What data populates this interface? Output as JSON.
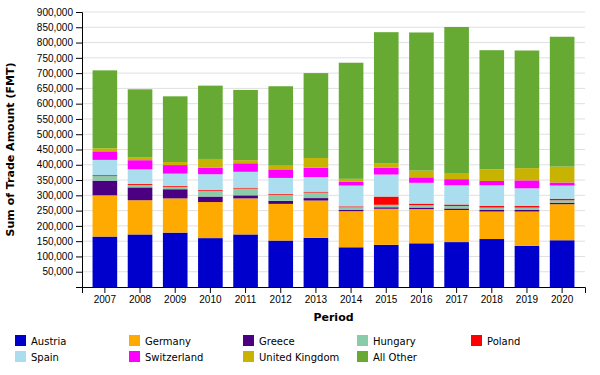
{
  "chart_data": {
    "type": "bar",
    "stacked": true,
    "grid": true,
    "legend": "bottom",
    "xlabel": "Period",
    "ylabel": "Sum of Trade Amount (FMT)",
    "categories": [
      "2007",
      "2008",
      "2009",
      "2010",
      "2011",
      "2012",
      "2013",
      "2014",
      "2015",
      "2016",
      "2017",
      "2018",
      "2019",
      "2020"
    ],
    "series": [
      {
        "name": "Austria",
        "color": "#0000cc",
        "values": [
          165000,
          172000,
          178000,
          160000,
          172000,
          152000,
          161000,
          130000,
          138000,
          143000,
          147000,
          157000,
          135000,
          153000
        ]
      },
      {
        "name": "Germany",
        "color": "#ffaa00",
        "values": [
          135000,
          112000,
          112000,
          118000,
          118000,
          120000,
          122000,
          118000,
          118000,
          112000,
          105000,
          90000,
          112000,
          118000
        ]
      },
      {
        "name": "Greece",
        "color": "#4b0082",
        "values": [
          48000,
          42000,
          30000,
          18000,
          10000,
          10000,
          8000,
          5000,
          5000,
          5000,
          5000,
          5000,
          5000,
          5000
        ]
      },
      {
        "name": "Hungary",
        "color": "#88ccaa",
        "values": [
          15000,
          8000,
          8000,
          18000,
          22000,
          20000,
          18000,
          8000,
          8000,
          8000,
          8000,
          8000,
          8000,
          8000
        ]
      },
      {
        "name": "Poland",
        "color": "#ff0000",
        "values": [
          3000,
          3000,
          3000,
          3000,
          3000,
          3000,
          3000,
          3000,
          27000,
          5000,
          5000,
          5000,
          5000,
          5000
        ]
      },
      {
        "name": "Spain",
        "color": "#aaddee",
        "values": [
          50000,
          48000,
          40000,
          52000,
          52000,
          52000,
          48000,
          68000,
          72000,
          68000,
          63000,
          68000,
          58000,
          43000
        ]
      },
      {
        "name": "Switzerland",
        "color": "#ff00ff",
        "values": [
          28000,
          30000,
          28000,
          22000,
          28000,
          28000,
          30000,
          12000,
          22000,
          18000,
          20000,
          14000,
          26000,
          10000
        ]
      },
      {
        "name": "United Kingdom",
        "color": "#c8b400",
        "values": [
          10000,
          10000,
          10000,
          28000,
          10000,
          12000,
          32000,
          10000,
          14000,
          22000,
          20000,
          38000,
          40000,
          52000
        ]
      },
      {
        "name": "All Other",
        "color": "#66aa33",
        "values": [
          255000,
          222000,
          215000,
          240000,
          230000,
          260000,
          278000,
          380000,
          430000,
          452000,
          478000,
          390000,
          385000,
          425000
        ]
      }
    ],
    "ylim": [
      0,
      900000
    ],
    "yticks": [
      {
        "value": 50000,
        "label": "50,000"
      },
      {
        "value": 100000,
        "label": "100,000"
      },
      {
        "value": 150000,
        "label": "150,000"
      },
      {
        "value": 200000,
        "label": "200,000"
      },
      {
        "value": 250000,
        "label": "250,000"
      },
      {
        "value": 300000,
        "label": "300,000"
      },
      {
        "value": 350000,
        "label": "350,000"
      },
      {
        "value": 400000,
        "label": "400,000"
      },
      {
        "value": 450000,
        "label": "450,000"
      },
      {
        "value": 500000,
        "label": "500,000"
      },
      {
        "value": 550000,
        "label": "550,000"
      },
      {
        "value": 600000,
        "label": "600,000"
      },
      {
        "value": 650000,
        "label": "650,000"
      },
      {
        "value": 700000,
        "label": "700,000"
      },
      {
        "value": 750000,
        "label": "750,000"
      },
      {
        "value": 800000,
        "label": "800,000"
      },
      {
        "value": 850000,
        "label": "850,000"
      },
      {
        "value": 900000,
        "label": "900,000"
      }
    ]
  }
}
